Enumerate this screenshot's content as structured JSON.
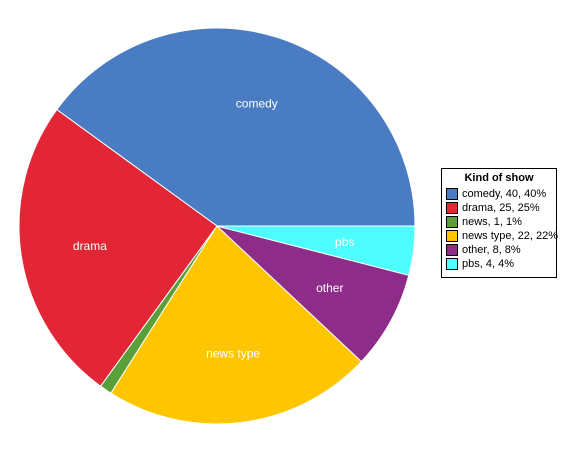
{
  "chart_data": {
    "type": "pie",
    "legend": {
      "title": "Kind of show",
      "placement": "right"
    },
    "slices": [
      {
        "label": "comedy",
        "value": 40,
        "percent": 40,
        "legend_text": "comedy, 40, 40%",
        "color": "#4A7CC4"
      },
      {
        "label": "drama",
        "value": 25,
        "percent": 25,
        "legend_text": "drama, 25, 25%",
        "color": "#E22636"
      },
      {
        "label": "news",
        "value": 1,
        "percent": 1,
        "legend_text": "news, 1, 1%",
        "color": "#5AA03A"
      },
      {
        "label": "news type",
        "value": 22,
        "percent": 22,
        "legend_text": "news type, 22, 22%",
        "color": "#FFC600"
      },
      {
        "label": "other",
        "value": 8,
        "percent": 8,
        "legend_text": "other, 8, 8%",
        "color": "#8E2C8A"
      },
      {
        "label": "pbs",
        "value": 4,
        "percent": 4,
        "legend_text": "pbs, 4, 4%",
        "color": "#4DFDFF"
      }
    ],
    "start": "3 o'clock, counter-clockwise"
  }
}
